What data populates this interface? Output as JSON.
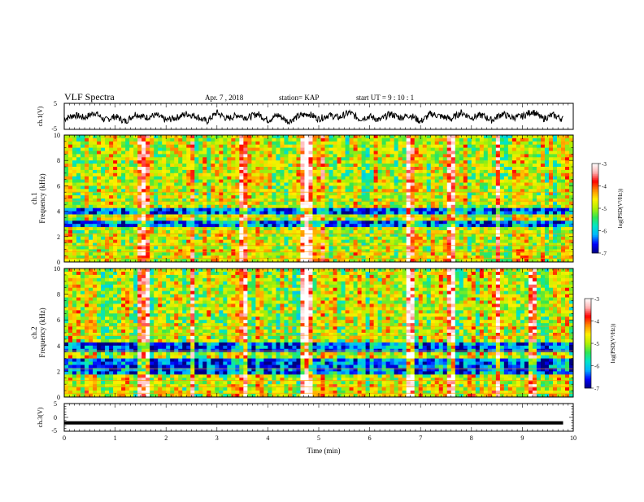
{
  "header": {
    "title": "VLF Spectra",
    "date": "Apr. 7 , 2018",
    "station": "station= KAP",
    "start_time": "start UT = 9 : 10 : 1"
  },
  "chart_data": [
    {
      "type": "line",
      "panel": "ch1-waveform",
      "ylabel": "ch.1(V)",
      "ylim": [
        -5,
        5
      ],
      "yticks": [
        "5",
        "-5"
      ],
      "xlim": [
        0,
        10
      ],
      "x": [
        0.0,
        0.2,
        0.4,
        0.6,
        0.8,
        1.0,
        1.2,
        1.4,
        1.6,
        1.8,
        2.0,
        2.2,
        2.4,
        2.6,
        2.8,
        3.0,
        3.2,
        3.4,
        3.6,
        3.8,
        4.0,
        4.2,
        4.4,
        4.6,
        4.8,
        5.0,
        5.2,
        5.4,
        5.6,
        5.8,
        6.0,
        6.2,
        6.4,
        6.6,
        6.8,
        7.0,
        7.2,
        7.4,
        7.6,
        7.8,
        8.0,
        8.2,
        8.4,
        8.6,
        8.8,
        9.0,
        9.2,
        9.4,
        9.6,
        9.8
      ],
      "y": [
        -1.0,
        0.5,
        -0.5,
        1.5,
        -1.5,
        0.0,
        -2.0,
        1.0,
        -0.5,
        0.5,
        -1.5,
        -0.5,
        1.0,
        0.0,
        -2.0,
        1.5,
        -1.0,
        0.5,
        -0.5,
        1.0,
        -1.5,
        0.5,
        -2.0,
        0.0,
        1.0,
        -1.0,
        0.5,
        -0.5,
        1.5,
        -1.0,
        0.0,
        -1.5,
        1.0,
        -0.5,
        0.5,
        -2.0,
        1.0,
        0.0,
        -1.0,
        1.5,
        -0.5,
        0.5,
        -1.5,
        1.0,
        -0.5,
        0.0,
        2.0,
        -1.0,
        0.5,
        -1.0
      ]
    },
    {
      "type": "heatmap",
      "panel": "ch1-spectrogram",
      "ylabel_1": "ch.1",
      "ylabel_2": "Frequency (kHz)",
      "ylim": [
        0,
        10
      ],
      "yticks": [
        "0",
        "2",
        "4",
        "6",
        "8",
        "10"
      ],
      "xlim": [
        0,
        10
      ],
      "colorbar": {
        "label": "log(PSD(V²/Hz))",
        "range": [
          -7,
          -3
        ],
        "ticks": [
          "-3",
          "-4",
          "-5",
          "-6",
          "-7"
        ],
        "colors": [
          "#000080",
          "#0000ff",
          "#00b4ff",
          "#00e6c8",
          "#32e650",
          "#b4f000",
          "#fff000",
          "#ff8c00",
          "#ff0000",
          "#ffb4b4",
          "#ffffff"
        ]
      },
      "low_power_bands_khz": [
        [
          2.7,
          3.3
        ],
        [
          3.7,
          4.3
        ]
      ],
      "bright_bursts_min": [
        1.5,
        1.6,
        2.5,
        3.5,
        4.7,
        4.8,
        5.1,
        6.8,
        7.6,
        8.5
      ]
    },
    {
      "type": "heatmap",
      "panel": "ch2-spectrogram",
      "ylabel_1": "ch.2",
      "ylabel_2": "Frequency (kHz)",
      "ylim": [
        0,
        10
      ],
      "yticks": [
        "0",
        "2",
        "4",
        "6",
        "8",
        "10"
      ],
      "xlim": [
        0,
        10
      ],
      "colorbar": {
        "label": "log(PSD(V²/Hz))",
        "range": [
          -7,
          -3
        ],
        "ticks": [
          "-3",
          "-4",
          "-5",
          "-6",
          "-7"
        ]
      },
      "low_power_bands_khz": [
        [
          1.8,
          3.0
        ],
        [
          3.6,
          4.2
        ]
      ],
      "bright_bursts_min": [
        1.5,
        1.6,
        2.5,
        3.5,
        4.7,
        4.8,
        6.8,
        7.6,
        8.5,
        9.2
      ]
    },
    {
      "type": "line",
      "panel": "ch3-waveform",
      "ylabel": "ch.3(V)",
      "ylim": [
        -5,
        5
      ],
      "yticks": [
        "5",
        "0",
        "-5"
      ],
      "xlabel": "Time (min)",
      "xlim": [
        0,
        10
      ],
      "xticks": [
        "0",
        "1",
        "2",
        "3",
        "4",
        "5",
        "6",
        "7",
        "8",
        "9",
        "10"
      ],
      "x": [
        0,
        9.8
      ],
      "y": [
        -2,
        -2
      ]
    }
  ]
}
